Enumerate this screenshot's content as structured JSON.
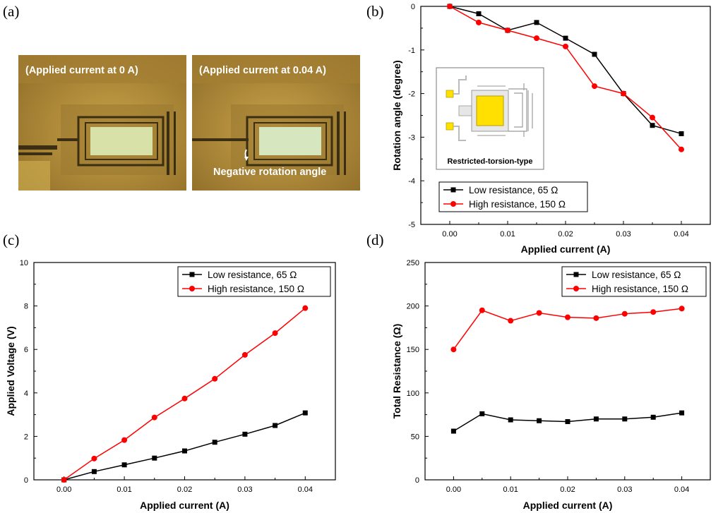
{
  "panels": {
    "a": "(a)",
    "b": "(b)",
    "c": "(c)",
    "d": "(d)"
  },
  "micrographs": {
    "left_caption": "(Applied current at 0 A)",
    "right_caption": "(Applied current at 0.04 A)",
    "annotation": "Negative rotation angle"
  },
  "inset": {
    "label": "Restricted-torsion-type"
  },
  "colors": {
    "low": "#000000",
    "high": "#ff0000",
    "micro_bg": "#b08a37",
    "inset_yellow": "#ffe000"
  },
  "chart_data": [
    {
      "id": "b",
      "type": "line",
      "title": "",
      "xlabel": "Applied current (A)",
      "ylabel": "Rotation angle (degree)",
      "xlim": [
        -0.005,
        0.045
      ],
      "ylim": [
        -5,
        0
      ],
      "xticks": [
        0.0,
        0.01,
        0.02,
        0.03,
        0.04
      ],
      "xtick_labels": [
        "0.00",
        "0.01",
        "0.02",
        "0.03",
        "0.04"
      ],
      "yticks": [
        0,
        -1,
        -2,
        -3,
        -4,
        -5
      ],
      "ytick_labels": [
        "0",
        "-1",
        "-2",
        "-3",
        "-4",
        "-5"
      ],
      "legend_position": "lower-left",
      "x": [
        0.0,
        0.005,
        0.01,
        0.015,
        0.02,
        0.025,
        0.03,
        0.035,
        0.04
      ],
      "series": [
        {
          "name": "Low resistance, 65 Ω",
          "marker": "square",
          "color": "#000000",
          "values": [
            0.0,
            -0.17,
            -0.55,
            -0.37,
            -0.73,
            -1.1,
            -2.0,
            -2.73,
            -2.92
          ]
        },
        {
          "name": "High resistance, 150 Ω",
          "marker": "circle",
          "color": "#ff0000",
          "values": [
            0.0,
            -0.37,
            -0.55,
            -0.73,
            -0.92,
            -1.83,
            -2.0,
            -2.55,
            -3.28
          ]
        }
      ]
    },
    {
      "id": "c",
      "type": "line",
      "title": "",
      "xlabel": "Applied current (A)",
      "ylabel": "Applied Voltage (V)",
      "xlim": [
        -0.005,
        0.045
      ],
      "ylim": [
        0,
        10
      ],
      "xticks": [
        0.0,
        0.01,
        0.02,
        0.03,
        0.04
      ],
      "xtick_labels": [
        "0.00",
        "0.01",
        "0.02",
        "0.03",
        "0.04"
      ],
      "yticks": [
        0,
        2,
        4,
        6,
        8,
        10
      ],
      "ytick_labels": [
        "0",
        "2",
        "4",
        "6",
        "8",
        "10"
      ],
      "legend_position": "top-right",
      "x": [
        0.0,
        0.005,
        0.01,
        0.015,
        0.02,
        0.025,
        0.03,
        0.035,
        0.04
      ],
      "series": [
        {
          "name": "Low resistance, 65 Ω",
          "marker": "square",
          "color": "#000000",
          "values": [
            0.0,
            0.38,
            0.69,
            1.0,
            1.33,
            1.73,
            2.1,
            2.5,
            3.08
          ]
        },
        {
          "name": "High resistance, 150 Ω",
          "marker": "circle",
          "color": "#ff0000",
          "values": [
            0.0,
            0.98,
            1.83,
            2.87,
            3.74,
            4.65,
            5.75,
            6.75,
            7.9
          ]
        }
      ]
    },
    {
      "id": "d",
      "type": "line",
      "title": "",
      "xlabel": "Applied current (A)",
      "ylabel": "Total Resistance (Ω)",
      "xlim": [
        -0.005,
        0.045
      ],
      "ylim": [
        0,
        250
      ],
      "xticks": [
        0.0,
        0.01,
        0.02,
        0.03,
        0.04
      ],
      "xtick_labels": [
        "0.00",
        "0.01",
        "0.02",
        "0.03",
        "0.04"
      ],
      "yticks": [
        0,
        50,
        100,
        150,
        200,
        250
      ],
      "ytick_labels": [
        "0",
        "50",
        "100",
        "150",
        "200",
        "250"
      ],
      "legend_position": "top-right",
      "x": [
        0.0,
        0.005,
        0.01,
        0.015,
        0.02,
        0.025,
        0.03,
        0.035,
        0.04
      ],
      "series": [
        {
          "name": "Low resistance, 65 Ω",
          "marker": "square",
          "color": "#000000",
          "values": [
            56,
            76,
            69,
            68,
            67,
            70,
            70,
            72,
            77
          ]
        },
        {
          "name": "High resistance, 150 Ω",
          "marker": "circle",
          "color": "#ff0000",
          "values": [
            150,
            195,
            183,
            192,
            187,
            186,
            191,
            193,
            197
          ]
        }
      ]
    }
  ]
}
